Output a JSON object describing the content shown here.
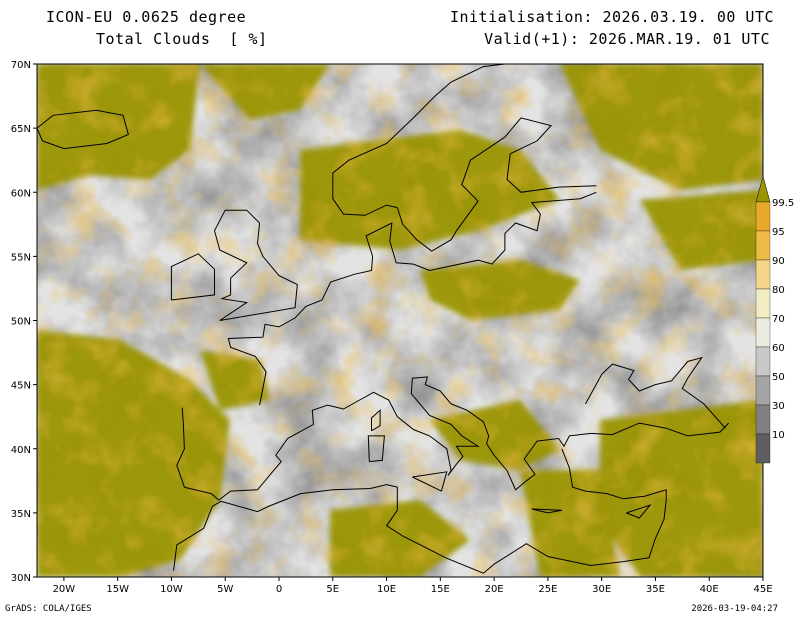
{
  "header": {
    "model_name": "ICON-EU 0.0625 degree",
    "variable": "Total Clouds  [ %]",
    "initialisation": "Initialisation: 2026.03.19. 00 UTC",
    "valid": "Valid(+1): 2026.MAR.19. 01 UTC"
  },
  "map": {
    "lat_labels": [
      "70N",
      "65N",
      "60N",
      "55N",
      "50N",
      "45N",
      "40N",
      "35N",
      "30N"
    ],
    "lon_labels": [
      "20W",
      "15W",
      "10W",
      "5W",
      "0",
      "5E",
      "10E",
      "15E",
      "20E",
      "25E",
      "30E",
      "35E",
      "40E",
      "45E"
    ],
    "lat_range": [
      30,
      70
    ],
    "lon_range": [
      -22.5,
      45
    ],
    "colors": {
      "clear": "#e3e3e3",
      "full_cloud": "#9a9400",
      "coastline": "#000000"
    }
  },
  "legend": {
    "labels": [
      "99.5",
      "95",
      "90",
      "80",
      "70",
      "60",
      "50",
      "30",
      "10"
    ],
    "colors": [
      "#e8a92a",
      "#efbb47",
      "#f4d68a",
      "#f1ecc2",
      "#ebebdf",
      "#c8c8c8",
      "#a4a4a4",
      "#808080",
      "#5e5e5e"
    ],
    "top_arrow_color": "#9a9400"
  },
  "footer": {
    "left": "GrADS: COLA/IGES",
    "right": "2026-03-19-04:27"
  }
}
